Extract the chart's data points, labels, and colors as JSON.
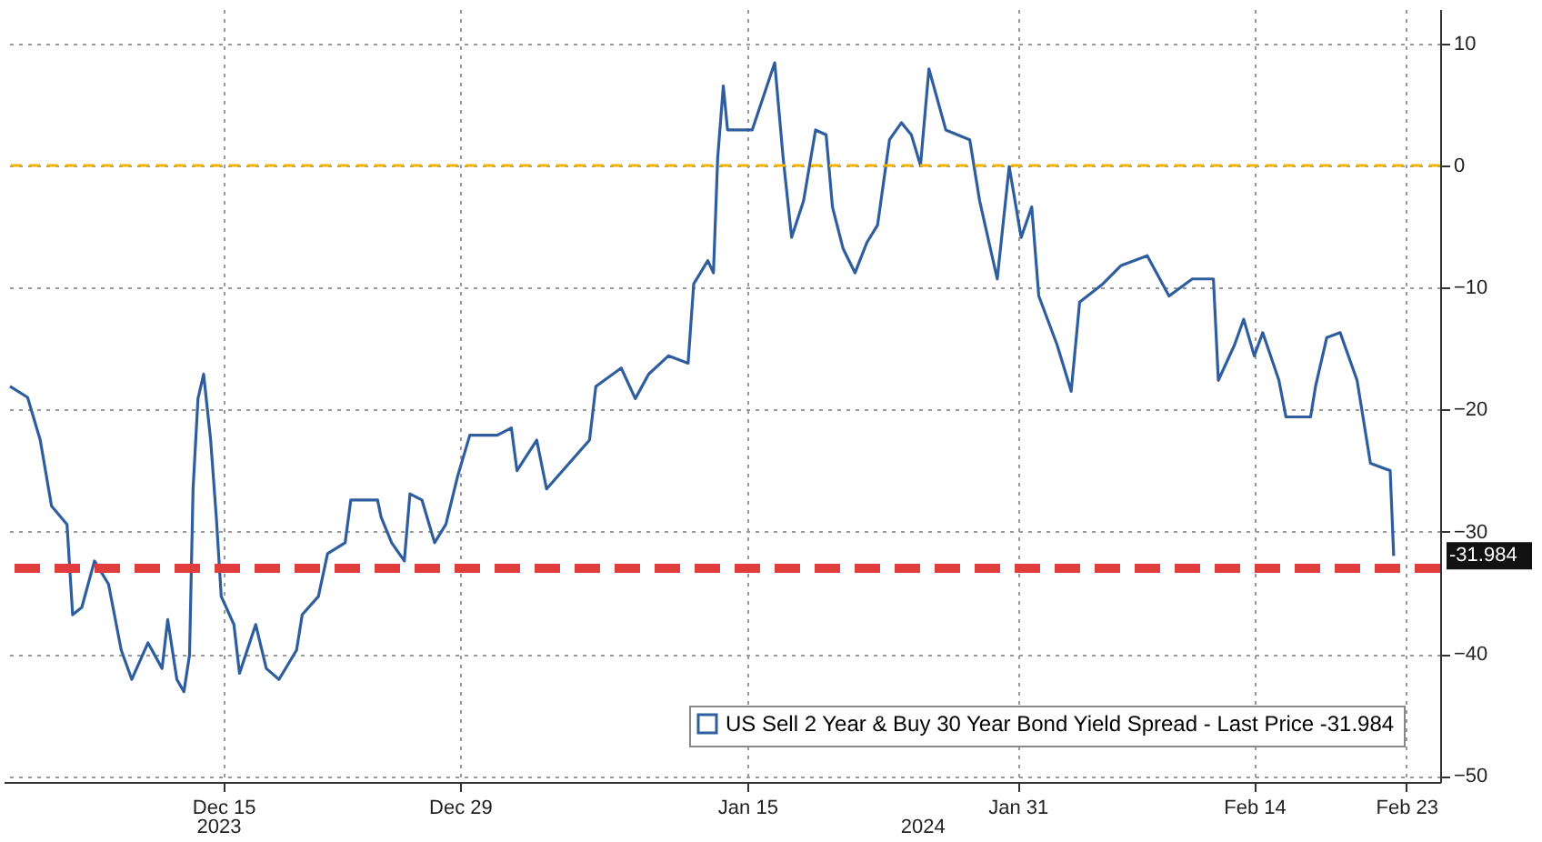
{
  "chart_data": {
    "type": "line",
    "x": [
      "2023-12-02T09:00",
      "2023-12-03T10:00",
      "2023-12-04T04:00",
      "2023-12-04T20:00",
      "2023-12-05T18:00",
      "2023-12-06T02:00",
      "2023-12-06T15:00",
      "2023-12-07T09:00",
      "2023-12-08T05:00",
      "2023-12-08T23:00",
      "2023-12-09T14:00",
      "2023-12-10T13:00",
      "2023-12-11T09:00",
      "2023-12-11T17:00",
      "2023-12-12T06:00",
      "2023-12-12T16:00",
      "2023-12-13T00:00",
      "2023-12-13T05:00",
      "2023-12-13T12:00",
      "2023-12-13T20:00",
      "2023-12-14T06:00",
      "2023-12-14T14:00",
      "2023-12-14T21:00",
      "2023-12-15T15:00",
      "2023-12-15T23:00",
      "2023-12-16T22:00",
      "2023-12-17T13:00",
      "2023-12-18T07:00",
      "2023-12-19T08:00",
      "2023-12-19T16:00",
      "2023-12-20T15:00",
      "2023-12-21T04:00",
      "2023-12-22T05:00",
      "2023-12-22T13:00",
      "2023-12-24T03:00",
      "2023-12-24T08:00",
      "2023-12-24T23:00",
      "2023-12-25T17:00",
      "2023-12-26T01:00",
      "2023-12-26T18:00",
      "2023-12-27T12:00",
      "2023-12-28T04:00",
      "2023-12-28T21:00",
      "2023-12-29T14:00",
      "2023-12-31T05:00",
      "2024-01-01T01:00",
      "2024-01-01T09:00",
      "2024-01-02T13:00",
      "2024-01-03T03:00",
      "2024-01-05T16:00",
      "2024-01-06T01:00",
      "2024-01-07T13:00",
      "2024-01-08T09:00",
      "2024-01-09T04:00",
      "2024-01-10T08:00",
      "2024-01-11T12:00",
      "2024-01-11T20:00",
      "2024-01-12T16:00",
      "2024-01-13T00:00",
      "2024-01-13T06:00",
      "2024-01-13T14:00",
      "2024-01-13T20:00",
      "2024-01-15T07:00",
      "2024-01-16T15:00",
      "2024-01-17T03:00",
      "2024-01-17T15:00",
      "2024-01-18T08:00",
      "2024-01-19T01:00",
      "2024-01-19T16:00",
      "2024-01-20T01:00",
      "2024-01-20T16:00",
      "2024-01-21T09:00",
      "2024-01-22T02:00",
      "2024-01-22T17:00",
      "2024-01-23T10:00",
      "2024-01-24T03:00",
      "2024-01-24T17:00",
      "2024-01-25T06:00",
      "2024-01-25T18:00",
      "2024-01-26T18:00",
      "2024-01-28T04:00",
      "2024-01-28T18:00",
      "2024-01-29T19:00",
      "2024-01-30T12:00",
      "2024-01-31T05:00",
      "2024-01-31T20:00",
      "2024-02-01T06:00",
      "2024-02-02T08:00",
      "2024-02-03T04:00",
      "2024-02-03T16:00",
      "2024-02-05T01:00",
      "2024-02-06T03:00",
      "2024-02-07T16:00",
      "2024-02-08T23:00",
      "2024-02-10T08:00",
      "2024-02-11T14:00",
      "2024-02-11T21:00",
      "2024-02-12T20:00",
      "2024-02-13T09:00",
      "2024-02-14T00:00",
      "2024-02-14T12:00",
      "2024-02-15T11:00",
      "2024-02-15T21:00",
      "2024-02-17T08:00",
      "2024-02-17T15:00",
      "2024-02-18T07:00",
      "2024-02-19T02:00",
      "2024-02-20T02:00",
      "2024-02-20T21:00",
      "2024-02-22T01:00",
      "2024-02-22T06:00"
    ],
    "series": [
      {
        "name": "US Sell 2 Year & Buy 30 Year Bond Yield Spread - Last Price -31.984",
        "color": "#2f5e9e",
        "values": [
          -18.1,
          -19.0,
          -22.5,
          -27.9,
          -29.4,
          -36.8,
          -36.2,
          -32.4,
          -34.3,
          -39.7,
          -42.1,
          -39.1,
          -41.2,
          -37.2,
          -42.1,
          -43.1,
          -40.1,
          -26.5,
          -19.1,
          -17.1,
          -22.5,
          -28.8,
          -35.3,
          -37.6,
          -41.6,
          -37.6,
          -41.2,
          -42.1,
          -39.7,
          -36.8,
          -35.3,
          -31.8,
          -30.9,
          -27.4,
          -27.4,
          -28.8,
          -30.9,
          -32.4,
          -26.9,
          -27.4,
          -30.9,
          -29.4,
          -25.4,
          -22.1,
          -22.1,
          -21.5,
          -25.0,
          -22.5,
          -26.5,
          -22.5,
          -18.1,
          -16.6,
          -19.1,
          -17.1,
          -15.6,
          -16.2,
          -9.7,
          -7.8,
          -8.8,
          0.6,
          6.5,
          2.9,
          2.9,
          8.4,
          0.6,
          -5.9,
          -2.9,
          2.9,
          2.5,
          -3.4,
          -6.8,
          -8.8,
          -6.3,
          -4.9,
          2.1,
          3.5,
          2.5,
          0.0,
          7.9,
          2.9,
          2.1,
          -2.9,
          -9.3,
          -0.1,
          -5.9,
          -3.4,
          -10.7,
          -14.7,
          -18.5,
          -11.2,
          -9.7,
          -8.2,
          -7.4,
          -10.7,
          -9.3,
          -9.3,
          -17.6,
          -14.7,
          -12.6,
          -15.6,
          -13.7,
          -17.6,
          -20.6,
          -20.6,
          -18.1,
          -14.1,
          -13.7,
          -17.6,
          -24.4,
          -25.0,
          -31.984
        ]
      }
    ],
    "xlim": [
      "2023-12-02",
      "2024-02-25"
    ],
    "xticks": [
      {
        "value": "2023-12-15",
        "label": "Dec 15"
      },
      {
        "value": "2023-12-29",
        "label": "Dec 29"
      },
      {
        "value": "2024-01-15",
        "label": "Jan 15"
      },
      {
        "value": "2024-01-31",
        "label": "Jan 31"
      },
      {
        "value": "2024-02-14",
        "label": "Feb 14"
      },
      {
        "value": "2024-02-23",
        "label": "Feb 23"
      }
    ],
    "ylim": [
      -50.5,
      12.8
    ],
    "yticks": [
      -50,
      -40,
      -30,
      -20,
      -10,
      0,
      10
    ],
    "grid": true,
    "legend": "bottom right",
    "marker": "none",
    "line_style": "solid",
    "ref_lines": [
      {
        "axis": "y",
        "value": 0,
        "color": "#f0b400",
        "line_style": "dashed"
      },
      {
        "axis": "y",
        "value": -33,
        "color": "#e03c3c",
        "line_style": "dashed"
      }
    ],
    "annotations": [
      {
        "text": "-31.984",
        "x": "2024-02-22T06:00",
        "y": -31.984
      },
      "2023",
      "2024"
    ]
  }
}
